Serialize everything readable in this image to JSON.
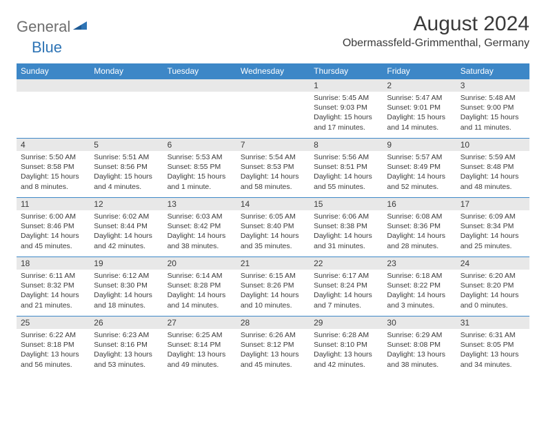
{
  "logo": {
    "gray": "General",
    "blue": "Blue"
  },
  "title": "August 2024",
  "subtitle": "Obermassfeld-Grimmenthal, Germany",
  "colors": {
    "header_bg": "#3d87c7",
    "header_fg": "#ffffff",
    "daynum_bg": "#e8e8e8",
    "text": "#3a3a3a",
    "logo_gray": "#6e6e6e",
    "logo_blue": "#2e74b5",
    "border": "#3d87c7"
  },
  "day_headers": [
    "Sunday",
    "Monday",
    "Tuesday",
    "Wednesday",
    "Thursday",
    "Friday",
    "Saturday"
  ],
  "weeks": [
    [
      null,
      null,
      null,
      null,
      {
        "n": "1",
        "sr": "5:45 AM",
        "ss": "9:03 PM",
        "dl": "15 hours and 17 minutes."
      },
      {
        "n": "2",
        "sr": "5:47 AM",
        "ss": "9:01 PM",
        "dl": "15 hours and 14 minutes."
      },
      {
        "n": "3",
        "sr": "5:48 AM",
        "ss": "9:00 PM",
        "dl": "15 hours and 11 minutes."
      }
    ],
    [
      {
        "n": "4",
        "sr": "5:50 AM",
        "ss": "8:58 PM",
        "dl": "15 hours and 8 minutes."
      },
      {
        "n": "5",
        "sr": "5:51 AM",
        "ss": "8:56 PM",
        "dl": "15 hours and 4 minutes."
      },
      {
        "n": "6",
        "sr": "5:53 AM",
        "ss": "8:55 PM",
        "dl": "15 hours and 1 minute."
      },
      {
        "n": "7",
        "sr": "5:54 AM",
        "ss": "8:53 PM",
        "dl": "14 hours and 58 minutes."
      },
      {
        "n": "8",
        "sr": "5:56 AM",
        "ss": "8:51 PM",
        "dl": "14 hours and 55 minutes."
      },
      {
        "n": "9",
        "sr": "5:57 AM",
        "ss": "8:49 PM",
        "dl": "14 hours and 52 minutes."
      },
      {
        "n": "10",
        "sr": "5:59 AM",
        "ss": "8:48 PM",
        "dl": "14 hours and 48 minutes."
      }
    ],
    [
      {
        "n": "11",
        "sr": "6:00 AM",
        "ss": "8:46 PM",
        "dl": "14 hours and 45 minutes."
      },
      {
        "n": "12",
        "sr": "6:02 AM",
        "ss": "8:44 PM",
        "dl": "14 hours and 42 minutes."
      },
      {
        "n": "13",
        "sr": "6:03 AM",
        "ss": "8:42 PM",
        "dl": "14 hours and 38 minutes."
      },
      {
        "n": "14",
        "sr": "6:05 AM",
        "ss": "8:40 PM",
        "dl": "14 hours and 35 minutes."
      },
      {
        "n": "15",
        "sr": "6:06 AM",
        "ss": "8:38 PM",
        "dl": "14 hours and 31 minutes."
      },
      {
        "n": "16",
        "sr": "6:08 AM",
        "ss": "8:36 PM",
        "dl": "14 hours and 28 minutes."
      },
      {
        "n": "17",
        "sr": "6:09 AM",
        "ss": "8:34 PM",
        "dl": "14 hours and 25 minutes."
      }
    ],
    [
      {
        "n": "18",
        "sr": "6:11 AM",
        "ss": "8:32 PM",
        "dl": "14 hours and 21 minutes."
      },
      {
        "n": "19",
        "sr": "6:12 AM",
        "ss": "8:30 PM",
        "dl": "14 hours and 18 minutes."
      },
      {
        "n": "20",
        "sr": "6:14 AM",
        "ss": "8:28 PM",
        "dl": "14 hours and 14 minutes."
      },
      {
        "n": "21",
        "sr": "6:15 AM",
        "ss": "8:26 PM",
        "dl": "14 hours and 10 minutes."
      },
      {
        "n": "22",
        "sr": "6:17 AM",
        "ss": "8:24 PM",
        "dl": "14 hours and 7 minutes."
      },
      {
        "n": "23",
        "sr": "6:18 AM",
        "ss": "8:22 PM",
        "dl": "14 hours and 3 minutes."
      },
      {
        "n": "24",
        "sr": "6:20 AM",
        "ss": "8:20 PM",
        "dl": "14 hours and 0 minutes."
      }
    ],
    [
      {
        "n": "25",
        "sr": "6:22 AM",
        "ss": "8:18 PM",
        "dl": "13 hours and 56 minutes."
      },
      {
        "n": "26",
        "sr": "6:23 AM",
        "ss": "8:16 PM",
        "dl": "13 hours and 53 minutes."
      },
      {
        "n": "27",
        "sr": "6:25 AM",
        "ss": "8:14 PM",
        "dl": "13 hours and 49 minutes."
      },
      {
        "n": "28",
        "sr": "6:26 AM",
        "ss": "8:12 PM",
        "dl": "13 hours and 45 minutes."
      },
      {
        "n": "29",
        "sr": "6:28 AM",
        "ss": "8:10 PM",
        "dl": "13 hours and 42 minutes."
      },
      {
        "n": "30",
        "sr": "6:29 AM",
        "ss": "8:08 PM",
        "dl": "13 hours and 38 minutes."
      },
      {
        "n": "31",
        "sr": "6:31 AM",
        "ss": "8:05 PM",
        "dl": "13 hours and 34 minutes."
      }
    ]
  ],
  "labels": {
    "sunrise": "Sunrise:",
    "sunset": "Sunset:",
    "daylight": "Daylight:"
  }
}
